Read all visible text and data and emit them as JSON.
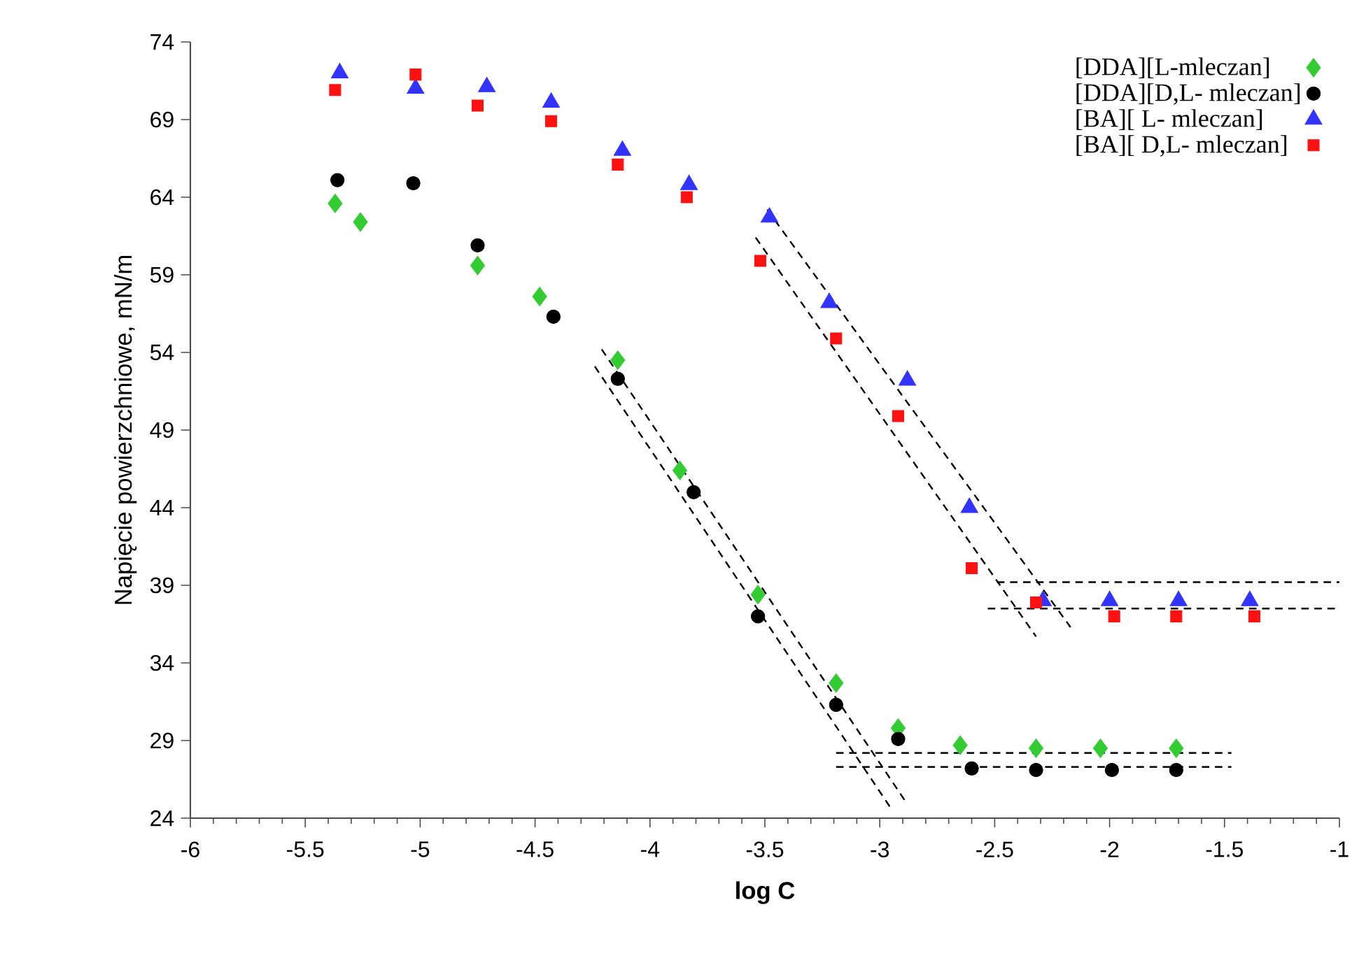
{
  "chart_data": {
    "type": "scatter",
    "xlabel": "log C",
    "ylabel": "Napięcie powierzchniowe, mN/m",
    "xlim": [
      -6,
      -1
    ],
    "xticks": [
      -6,
      -5.5,
      -5,
      -4.5,
      -4,
      -3.5,
      -3,
      -2.5,
      -2,
      -1.5,
      -1
    ],
    "ylim": [
      24,
      74
    ],
    "yticks": [
      24,
      29,
      34,
      39,
      44,
      49,
      54,
      59,
      64,
      69,
      74
    ],
    "grid": false,
    "legend": "top right",
    "series": [
      {
        "name": "[DDA][L-mleczan]",
        "color": "#33cc33",
        "marker": "diamond",
        "x": [
          -5.37,
          -5.26,
          -4.75,
          -4.48,
          -4.14,
          -3.87,
          -3.53,
          -3.19,
          -2.92,
          -2.65,
          -2.32,
          -2.04,
          -1.71
        ],
        "values": [
          63.6,
          62.4,
          59.6,
          57.6,
          53.5,
          46.4,
          38.4,
          32.7,
          29.8,
          28.7,
          28.5,
          28.5,
          28.5
        ]
      },
      {
        "name": "[DDA][D,L- mleczan]",
        "color": "#000000",
        "marker": "circle",
        "x": [
          -5.36,
          -5.03,
          -4.75,
          -4.42,
          -4.14,
          -3.81,
          -3.53,
          -3.19,
          -2.92,
          -2.6,
          -2.32,
          -1.99,
          -1.71
        ],
        "values": [
          65.1,
          64.9,
          60.9,
          56.3,
          52.3,
          45.0,
          37.0,
          31.3,
          29.1,
          27.2,
          27.1,
          27.1,
          27.1
        ]
      },
      {
        "name": "[BA][ L- mleczan]",
        "color": "#3333ff",
        "marker": "triangle",
        "x": [
          -5.35,
          -5.02,
          -4.71,
          -4.43,
          -4.12,
          -3.83,
          -3.48,
          -3.22,
          -2.88,
          -2.61,
          -2.29,
          -2.0,
          -1.7,
          -1.39
        ],
        "values": [
          72.0,
          71.0,
          71.1,
          70.1,
          67.0,
          64.8,
          62.7,
          57.2,
          52.2,
          44.0,
          38.0,
          38.0,
          38.0,
          38.0
        ]
      },
      {
        "name": "[BA][ D,L- mleczan]",
        "color": "#ff1111",
        "marker": "square",
        "x": [
          -5.37,
          -5.02,
          -4.75,
          -4.43,
          -4.14,
          -3.84,
          -3.52,
          -3.19,
          -2.92,
          -2.6,
          -2.32,
          -1.98,
          -1.71,
          -1.37
        ],
        "values": [
          70.9,
          71.9,
          69.9,
          68.9,
          66.1,
          64.0,
          59.9,
          54.9,
          49.9,
          40.1,
          37.9,
          37.0,
          37.0,
          37.0
        ]
      },
      {
        "type": "line",
        "color": "#000000",
        "marker": "none",
        "line_style": "dashed",
        "x": [
          -4.21,
          -2.88
        ],
        "values": [
          54.2,
          24.9
        ]
      },
      {
        "type": "line",
        "color": "#000000",
        "marker": "none",
        "line_style": "dashed",
        "x": [
          -4.24,
          -2.95
        ],
        "values": [
          53.1,
          24.6
        ]
      },
      {
        "type": "line",
        "color": "#000000",
        "marker": "none",
        "line_style": "dashed",
        "x": [
          -3.49,
          -2.17
        ],
        "values": [
          63.2,
          36.3
        ]
      },
      {
        "type": "line",
        "color": "#000000",
        "marker": "none",
        "line_style": "dashed",
        "x": [
          -3.54,
          -2.32
        ],
        "values": [
          61.4,
          35.7
        ]
      },
      {
        "type": "line",
        "color": "#000000",
        "marker": "none",
        "line_style": "dashed",
        "x": [
          -3.19,
          -1.47
        ],
        "values": [
          28.2,
          28.2
        ]
      },
      {
        "type": "line",
        "color": "#000000",
        "marker": "none",
        "line_style": "dashed",
        "x": [
          -3.19,
          -1.47
        ],
        "values": [
          27.3,
          27.3
        ]
      },
      {
        "type": "line",
        "color": "#000000",
        "marker": "none",
        "line_style": "dashed",
        "x": [
          -2.49,
          -1.0
        ],
        "values": [
          39.2,
          39.2
        ]
      },
      {
        "type": "line",
        "color": "#000000",
        "marker": "none",
        "line_style": "dashed",
        "x": [
          -2.53,
          -1.0
        ],
        "values": [
          37.5,
          37.5
        ]
      }
    ]
  }
}
